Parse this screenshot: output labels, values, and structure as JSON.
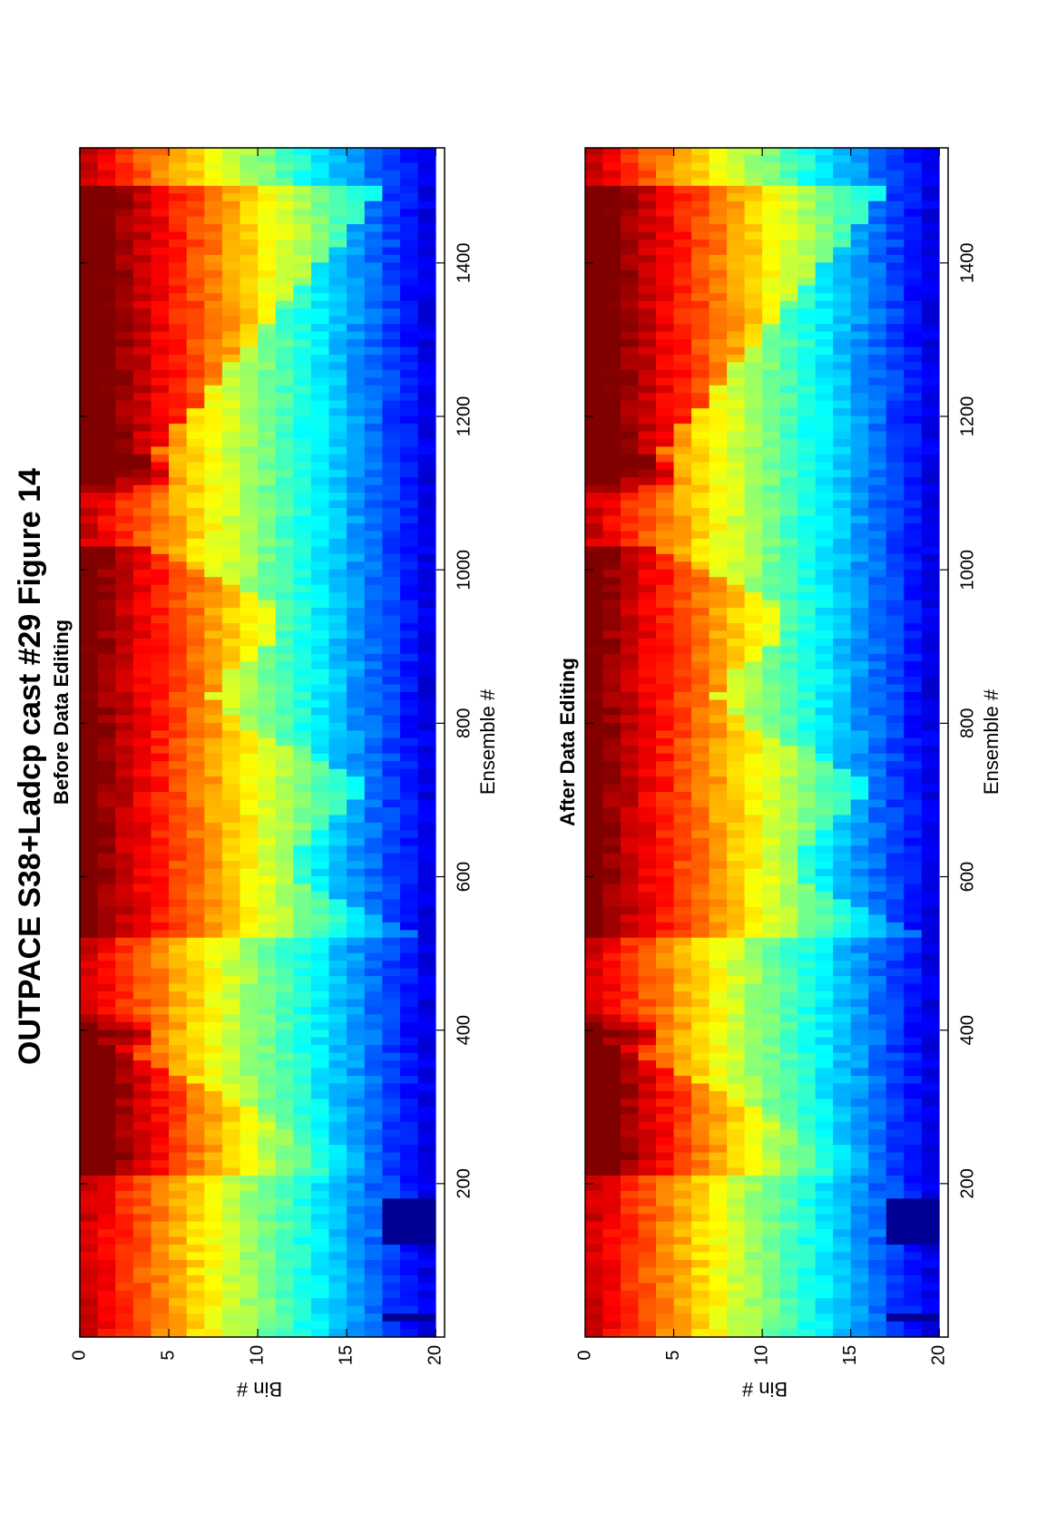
{
  "figure": {
    "title": "OUTPACE S38+Ladcp cast #29  Figure 14"
  },
  "colors": {
    "colormap": "jet",
    "axis": "#000000",
    "background": "#ffffff"
  },
  "chart_data": [
    {
      "type": "heatmap",
      "title": "Before Data Editing",
      "xlabel": "Ensemble #",
      "ylabel": "Bin #",
      "xlim": [
        1,
        1550
      ],
      "ylim": [
        0,
        20.5
      ],
      "xticks": [
        200,
        400,
        600,
        800,
        1000,
        1200,
        1400
      ],
      "xtick_labels": [
        "200",
        "400",
        "600",
        "800",
        "1000",
        "1200",
        "1400"
      ],
      "yticks": [
        0,
        5,
        10,
        15,
        20
      ],
      "ytick_labels": [
        "0",
        "5",
        "10",
        "15",
        "20"
      ],
      "y_reversed": true,
      "orientation": "rotated 90° counter-clockwise on page",
      "bins": 20,
      "ensembles": 1550,
      "colormap": "jet",
      "features": {
        "descent_1": [
          210,
          390
        ],
        "peak_1": 390,
        "descent_2": [
          520,
          1030
        ],
        "peak_2": 1120,
        "ascent": [
          1130,
          1500
        ],
        "low_value_gaps": [
          [
            120,
            180
          ],
          [
            15,
            30
          ]
        ]
      }
    },
    {
      "type": "heatmap",
      "title": "After Data Editing",
      "xlabel": "Ensemble #",
      "ylabel": "Bin #",
      "xlim": [
        1,
        1550
      ],
      "ylim": [
        0,
        20.5
      ],
      "xticks": [
        200,
        400,
        600,
        800,
        1000,
        1200,
        1400
      ],
      "xtick_labels": [
        "200",
        "400",
        "600",
        "800",
        "1000",
        "1200",
        "1400"
      ],
      "yticks": [
        0,
        5,
        10,
        15,
        20
      ],
      "ytick_labels": [
        "0",
        "5",
        "10",
        "15",
        "20"
      ],
      "y_reversed": true,
      "orientation": "rotated 90° counter-clockwise on page",
      "bins": 20,
      "ensembles": 1550,
      "colormap": "jet",
      "features": {
        "descent_1": [
          210,
          390
        ],
        "peak_1": 390,
        "descent_2": [
          520,
          1030
        ],
        "peak_2": 1120,
        "ascent": [
          1130,
          1500
        ],
        "low_value_gaps": [
          [
            120,
            180
          ],
          [
            15,
            30
          ]
        ]
      }
    }
  ]
}
